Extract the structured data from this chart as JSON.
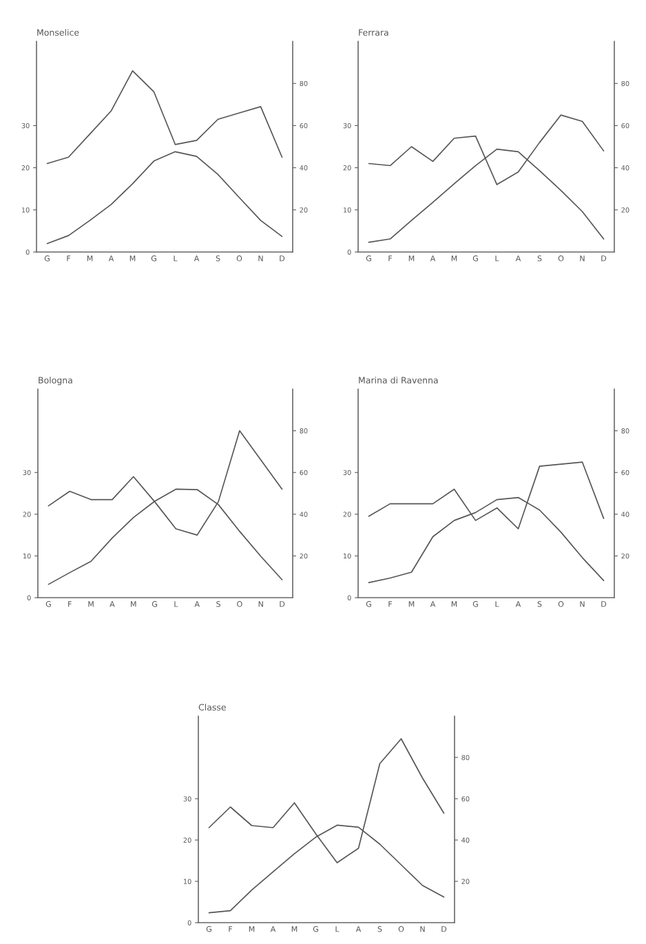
{
  "chart_data": [
    {
      "type": "line",
      "title": "Monselice",
      "categories": [
        "G",
        "F",
        "M",
        "A",
        "M",
        "G",
        "L",
        "A",
        "S",
        "O",
        "N",
        "D"
      ],
      "series": [
        {
          "color": "#555555",
          "values": [
            2.0,
            3.9,
            7.5,
            11.3,
            16.2,
            21.6,
            23.8,
            22.7,
            18.4,
            12.9,
            7.5,
            3.7
          ]
        },
        {
          "color": "#555555",
          "axis": "y2",
          "values": [
            42,
            45,
            56,
            67,
            86,
            76,
            51,
            53,
            63,
            66,
            69,
            45
          ]
        }
      ],
      "ylim": [
        0,
        50
      ],
      "yticks": [
        0,
        10,
        20,
        30
      ],
      "y2lim": [
        0,
        100
      ],
      "y2ticks": [
        20,
        40,
        60,
        80
      ]
    },
    {
      "type": "line",
      "title": "Ferrara",
      "categories": [
        "G",
        "F",
        "M",
        "A",
        "M",
        "G",
        "L",
        "A",
        "S",
        "O",
        "N",
        "D"
      ],
      "series": [
        {
          "color": "#555555",
          "values": [
            2.3,
            3.1,
            7.5,
            11.8,
            16.2,
            20.5,
            24.4,
            23.8,
            19.3,
            14.6,
            9.6,
            3.1
          ]
        },
        {
          "color": "#555555",
          "axis": "y2",
          "values": [
            42,
            41,
            50,
            43,
            54,
            55,
            32,
            38,
            52,
            65,
            62,
            48
          ]
        }
      ],
      "ylim": [
        0,
        50
      ],
      "yticks": [
        0,
        10,
        20,
        30
      ],
      "y2lim": [
        0,
        100
      ],
      "y2ticks": [
        20,
        40,
        60,
        80
      ]
    },
    {
      "type": "line",
      "title": "Bologna",
      "categories": [
        "G",
        "F",
        "M",
        "A",
        "M",
        "G",
        "L",
        "A",
        "S",
        "O",
        "N",
        "D"
      ],
      "series": [
        {
          "color": "#555555",
          "values": [
            3.2,
            6.0,
            8.7,
            14.3,
            19.2,
            23.1,
            26.0,
            25.9,
            22.3,
            15.9,
            9.9,
            4.3
          ]
        },
        {
          "color": "#555555",
          "axis": "y2",
          "values": [
            44,
            51,
            47,
            47,
            58,
            46,
            33,
            30,
            46,
            80,
            66,
            52
          ]
        }
      ],
      "ylim": [
        0,
        50
      ],
      "yticks": [
        0,
        10,
        20,
        30
      ],
      "y2lim": [
        0,
        100
      ],
      "y2ticks": [
        20,
        40,
        60,
        80
      ]
    },
    {
      "type": "line",
      "title": "Marina di Ravenna",
      "categories": [
        "G",
        "F",
        "M",
        "A",
        "M",
        "G",
        "L",
        "A",
        "S",
        "O",
        "N",
        "D"
      ],
      "series": [
        {
          "color": "#555555",
          "values": [
            3.6,
            4.7,
            6.1,
            14.6,
            18.5,
            20.4,
            23.5,
            24.0,
            21.0,
            15.7,
            9.6,
            4.1
          ]
        },
        {
          "color": "#555555",
          "axis": "y2",
          "values": [
            39,
            45,
            45,
            45,
            52,
            37,
            43,
            33,
            63,
            64,
            65,
            38
          ]
        }
      ],
      "ylim": [
        0,
        50
      ],
      "yticks": [
        0,
        10,
        20,
        30
      ],
      "y2lim": [
        0,
        100
      ],
      "y2ticks": [
        20,
        40,
        60,
        80
      ]
    },
    {
      "type": "line",
      "title": "Classe",
      "categories": [
        "G",
        "F",
        "M",
        "A",
        "M",
        "G",
        "L",
        "A",
        "S",
        "O",
        "N",
        "D"
      ],
      "series": [
        {
          "color": "#555555",
          "values": [
            2.4,
            2.9,
            7.9,
            12.3,
            16.7,
            20.7,
            23.6,
            23.1,
            19.0,
            14.0,
            9.0,
            6.2
          ]
        },
        {
          "color": "#555555",
          "axis": "y2",
          "values": [
            46,
            56,
            47,
            46,
            58,
            43,
            29,
            36,
            77,
            89,
            70,
            53
          ]
        }
      ],
      "ylim": [
        0,
        50
      ],
      "yticks": [
        0,
        10,
        20,
        30
      ],
      "y2lim": [
        0,
        100
      ],
      "y2ticks": [
        20,
        40,
        60,
        80
      ]
    }
  ]
}
